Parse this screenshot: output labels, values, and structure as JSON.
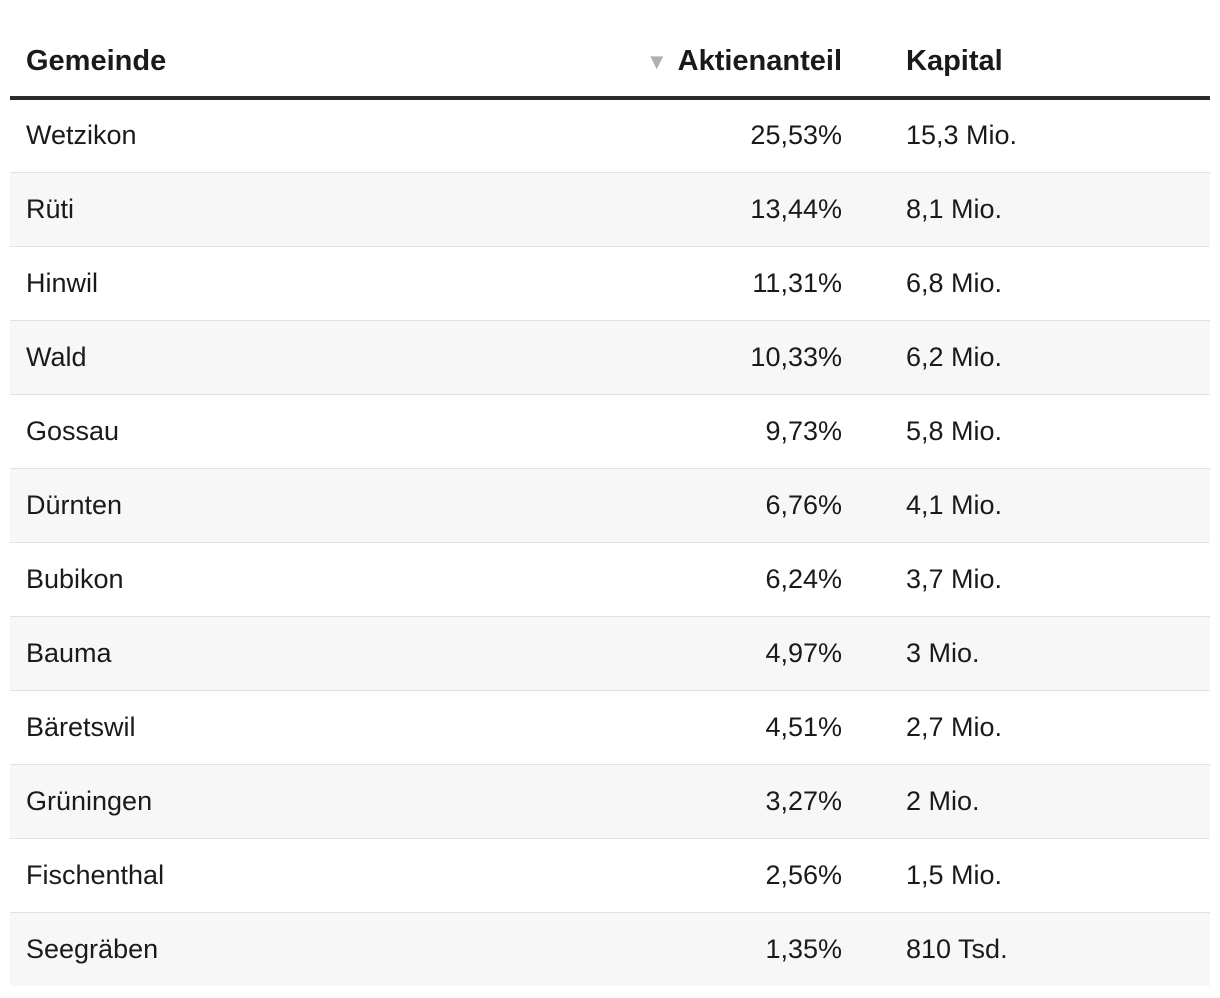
{
  "chart_data": {
    "type": "table",
    "columns": [
      {
        "key": "gemeinde",
        "label": "Gemeinde"
      },
      {
        "key": "aktienanteil",
        "label": "Aktienanteil",
        "sorted": "descending"
      },
      {
        "key": "kapital",
        "label": "Kapital"
      }
    ],
    "sort_icon": "triangle-down-icon",
    "rows": [
      {
        "gemeinde": "Wetzikon",
        "aktienanteil": "25,53%",
        "kapital": "15,3 Mio."
      },
      {
        "gemeinde": "Rüti",
        "aktienanteil": "13,44%",
        "kapital": "8,1 Mio."
      },
      {
        "gemeinde": "Hinwil",
        "aktienanteil": "11,31%",
        "kapital": "6,8 Mio."
      },
      {
        "gemeinde": "Wald",
        "aktienanteil": "10,33%",
        "kapital": "6,2 Mio."
      },
      {
        "gemeinde": "Gossau",
        "aktienanteil": "9,73%",
        "kapital": "5,8 Mio."
      },
      {
        "gemeinde": "Dürnten",
        "aktienanteil": "6,76%",
        "kapital": "4,1 Mio."
      },
      {
        "gemeinde": "Bubikon",
        "aktienanteil": "6,24%",
        "kapital": "3,7 Mio."
      },
      {
        "gemeinde": "Bauma",
        "aktienanteil": "4,97%",
        "kapital": "3 Mio."
      },
      {
        "gemeinde": "Bäretswil",
        "aktienanteil": "4,51%",
        "kapital": "2,7 Mio."
      },
      {
        "gemeinde": "Grüningen",
        "aktienanteil": "3,27%",
        "kapital": "2 Mio."
      },
      {
        "gemeinde": "Fischenthal",
        "aktienanteil": "2,56%",
        "kapital": "1,5 Mio."
      },
      {
        "gemeinde": "Seegräben",
        "aktienanteil": "1,35%",
        "kapital": "810 Tsd."
      }
    ],
    "colors": {
      "header_rule": "#2b2b2b",
      "row_stripe": "#f7f7f7",
      "row_divider": "#e2e2e2",
      "sort_arrow": "#b0b0b0"
    }
  }
}
